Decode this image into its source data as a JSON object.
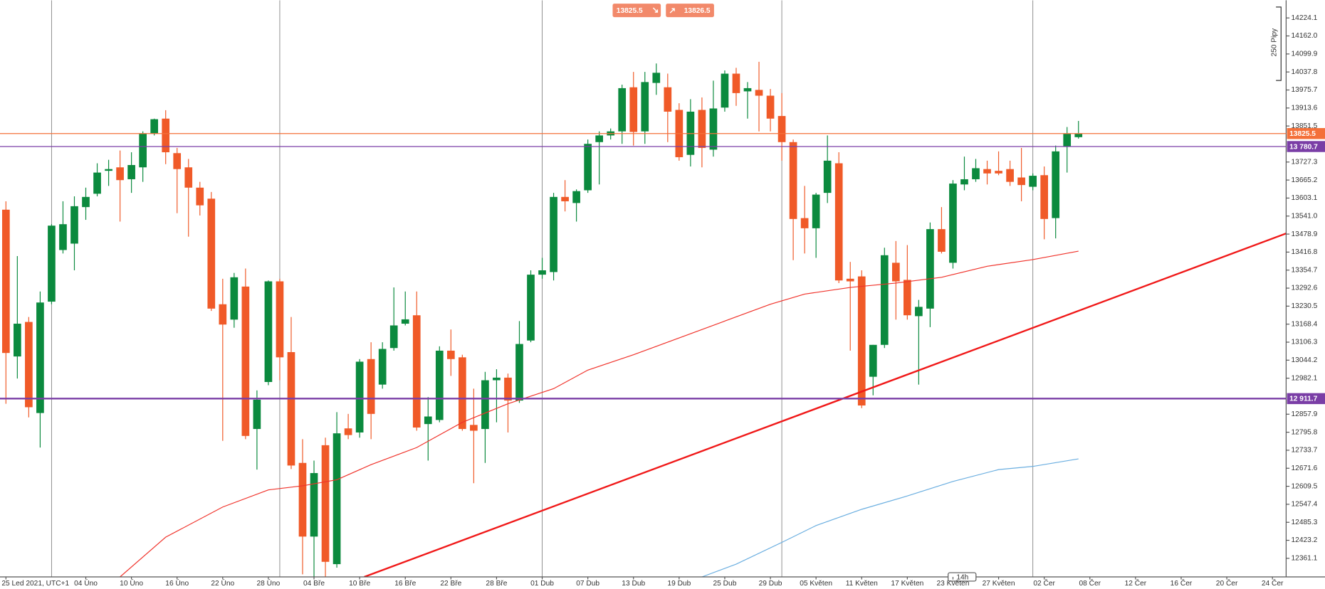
{
  "chart_data": {
    "type": "candlestick",
    "up_color": "#0b8a3e",
    "down_color": "#f05a28",
    "open": [
      13563,
      13057,
      13176,
      12862,
      13246,
      13424,
      13446,
      13572,
      13618,
      13697,
      13709,
      13668,
      13709,
      13825,
      13877,
      13758,
      13709,
      13639,
      13601,
      13237,
      13184,
      13298,
      12807,
      12969,
      13316,
      13072,
      12690,
      12436,
      12751,
      12341,
      12809,
      12795,
      13048,
      12960,
      13086,
      13170,
      13199,
      12824,
      12838,
      13077,
      13054,
      12821,
      12807,
      12975,
      12984,
      12905,
      13112,
      13339,
      13348,
      13607,
      13586,
      13630,
      13796,
      13819,
      13833,
      13985,
      13833,
      14000,
      13985,
      13907,
      13752,
      13907,
      13770,
      13915,
      14032,
      13971,
      13976,
      13956,
      13886,
      13796,
      13534,
      13499,
      13621,
      13723,
      13325,
      13333,
      12987,
      13097,
      13380,
      13321,
      13196,
      13222,
      13496,
      13380,
      13650,
      13668,
      13703,
      13697,
      13703,
      13674,
      13642,
      13682,
      13534,
      13781,
      13813
    ],
    "high": [
      13592,
      13403,
      13193,
      13281,
      13513,
      13592,
      13609,
      13639,
      13723,
      13735,
      13767,
      13761,
      13833,
      13877,
      13906,
      13776,
      13738,
      13659,
      13624,
      13325,
      13345,
      13360,
      12940,
      13319,
      13325,
      13193,
      12772,
      12698,
      12777,
      12865,
      12859,
      13048,
      13106,
      13106,
      13295,
      13281,
      13281,
      12917,
      13092,
      13150,
      13063,
      12946,
      13004,
      13013,
      12998,
      13179,
      13354,
      13397,
      13621,
      13665,
      13633,
      13805,
      13833,
      13843,
      13994,
      14038,
      14038,
      14067,
      14032,
      13930,
      13944,
      13950,
      14008,
      14043,
      14052,
      14003,
      14073,
      13979,
      13965,
      13805,
      13645,
      13621,
      13819,
      13761,
      13383,
      13354,
      13097,
      13432,
      13455,
      13441,
      13252,
      13519,
      13572,
      13665,
      13746,
      13738,
      13732,
      13764,
      13732,
      13776,
      13688,
      13712,
      13784,
      13848,
      13869
    ],
    "low": [
      12894,
      12981,
      12847,
      12743,
      13237,
      13412,
      13354,
      13528,
      13609,
      13645,
      13522,
      13621,
      13659,
      13819,
      13720,
      13551,
      13470,
      13543,
      13214,
      12766,
      13156,
      12772,
      12667,
      12958,
      12975,
      12669,
      12306,
      12276,
      12276,
      12329,
      12772,
      12777,
      12772,
      12946,
      13077,
      13164,
      12801,
      12698,
      12830,
      12990,
      12801,
      12620,
      12690,
      12830,
      12795,
      12897,
      13106,
      13325,
      13319,
      13557,
      13522,
      13621,
      13650,
      13805,
      13790,
      13784,
      13790,
      13959,
      13796,
      13732,
      13712,
      13709,
      13746,
      13901,
      13921,
      13877,
      13833,
      13833,
      13732,
      13389,
      13412,
      13397,
      13586,
      13310,
      13077,
      12879,
      12923,
      13086,
      13184,
      13184,
      12960,
      13158,
      13412,
      13360,
      13630,
      13659,
      13650,
      13682,
      13645,
      13592,
      13630,
      13461,
      13464,
      13691,
      13808
    ],
    "close": [
      13069,
      13170,
      12882,
      13243,
      13508,
      13513,
      13575,
      13607,
      13691,
      13703,
      13665,
      13717,
      13825,
      13875,
      13761,
      13703,
      13639,
      13578,
      13222,
      13167,
      13330,
      12783,
      12908,
      13316,
      13054,
      12681,
      12436,
      12655,
      12349,
      12792,
      12786,
      13039,
      12859,
      13083,
      13164,
      13185,
      12812,
      12850,
      13077,
      13048,
      12807,
      12801,
      12975,
      12984,
      12905,
      13100,
      13339,
      13354,
      13607,
      13592,
      13627,
      13790,
      13819,
      13833,
      13982,
      13831,
      14003,
      14035,
      13901,
      13744,
      13901,
      13776,
      13912,
      14032,
      13965,
      13982,
      13956,
      13877,
      13796,
      13531,
      13499,
      13615,
      13732,
      13319,
      13316,
      12888,
      13097,
      13406,
      13316,
      13199,
      13228,
      13496,
      13418,
      13653,
      13668,
      13706,
      13688,
      13688,
      13659,
      13648,
      13680,
      13531,
      13764,
      13825,
      13825
    ],
    "ma_lines": [
      {
        "color": "#f0322a",
        "x": [
          10,
          14,
          19,
          23,
          26,
          29,
          32,
          36,
          40,
          44,
          48,
          51,
          55,
          59,
          63,
          67,
          70,
          74,
          78,
          82,
          86,
          90,
          94
        ],
        "values": [
          12297,
          12434,
          12538,
          12597,
          12611,
          12632,
          12684,
          12743,
          12830,
          12894,
          12946,
          13010,
          13063,
          13121,
          13179,
          13237,
          13272,
          13295,
          13310,
          13330,
          13368,
          13391,
          13420
        ]
      },
      {
        "color": "#6aaee0",
        "x": [
          61,
          64,
          68,
          71,
          75,
          79,
          83,
          87,
          90,
          94
        ],
        "values": [
          12297,
          12341,
          12416,
          12474,
          12530,
          12576,
          12626,
          12667,
          12678,
          12704
        ]
      }
    ],
    "trendline": {
      "color": "#f01818",
      "x": [
        31.4,
        112.4
      ],
      "values": [
        12297,
        13484
      ]
    },
    "price_lines": [
      {
        "value": 13825.5,
        "color": "#f4703a"
      },
      {
        "value": 13780.7,
        "label": "13 780.7",
        "color": "#7a3ea6"
      },
      {
        "value": 12911.7,
        "label": "12 911.7",
        "color": "#7a3ea6"
      }
    ],
    "vgrid": [
      4,
      24,
      47,
      68,
      90
    ],
    "xlim": [
      -0.52,
      112.2
    ],
    "ylim": [
      12297,
      14285
    ],
    "yticks": [
      14224.1,
      {
        "value": 14162,
        "label": "14162.0"
      },
      14099.9,
      14037.8,
      13975.7,
      13913.6,
      13851.5,
      13727.3,
      13665.2,
      13603.1,
      {
        "value": 13541,
        "label": "13541.0"
      },
      13478.9,
      13416.8,
      13354.7,
      13292.6,
      13230.5,
      13168.4,
      13106.3,
      13044.2,
      12982.1,
      12857.9,
      12795.8,
      12733.7,
      12671.6,
      12609.5,
      12547.4,
      12485.3,
      12423.2,
      12361.1
    ],
    "xticks": [
      {
        "value": 0,
        "label": "25 Led 2021, UTC+1"
      },
      {
        "value": 7,
        "label": "04 Úno"
      },
      {
        "value": 11,
        "label": "10 Úno"
      },
      {
        "value": 15,
        "label": "16 Úno"
      },
      {
        "value": 19,
        "label": "22 Úno"
      },
      {
        "value": 23,
        "label": "28 Úno"
      },
      {
        "value": 27,
        "label": "04 Bře"
      },
      {
        "value": 31,
        "label": "10 Bře"
      },
      {
        "value": 35,
        "label": "16 Bře"
      },
      {
        "value": 39,
        "label": "22 Bře"
      },
      {
        "value": 43,
        "label": "28 Bře"
      },
      {
        "value": 47,
        "label": "01 Dub"
      },
      {
        "value": 51,
        "label": "07 Dub"
      },
      {
        "value": 55,
        "label": "13 Dub"
      },
      {
        "value": 59,
        "label": "19 Dub"
      },
      {
        "value": 63,
        "label": "25 Dub"
      },
      {
        "value": 67,
        "label": "29 Dub"
      },
      {
        "value": 71,
        "label": "05 Květen"
      },
      {
        "value": 75,
        "label": "11 Květen"
      },
      {
        "value": 79,
        "label": "17 Květen"
      },
      {
        "value": 83,
        "label": "23 Květen"
      },
      {
        "value": 87,
        "label": "27 Květen"
      },
      {
        "value": 91,
        "label": "02 Čer"
      },
      {
        "value": 95,
        "label": "08 Čer"
      },
      {
        "value": 99,
        "label": "12 Čer"
      },
      {
        "value": 103,
        "label": "16 Čer"
      },
      {
        "value": 107,
        "label": "20 Čer"
      },
      {
        "value": 111,
        "label": "24 Čer"
      }
    ],
    "quote": {
      "sell": 13825.5,
      "buy": 13826.5
    },
    "scale_label": "250 Pipy",
    "timeframe": "14h"
  }
}
